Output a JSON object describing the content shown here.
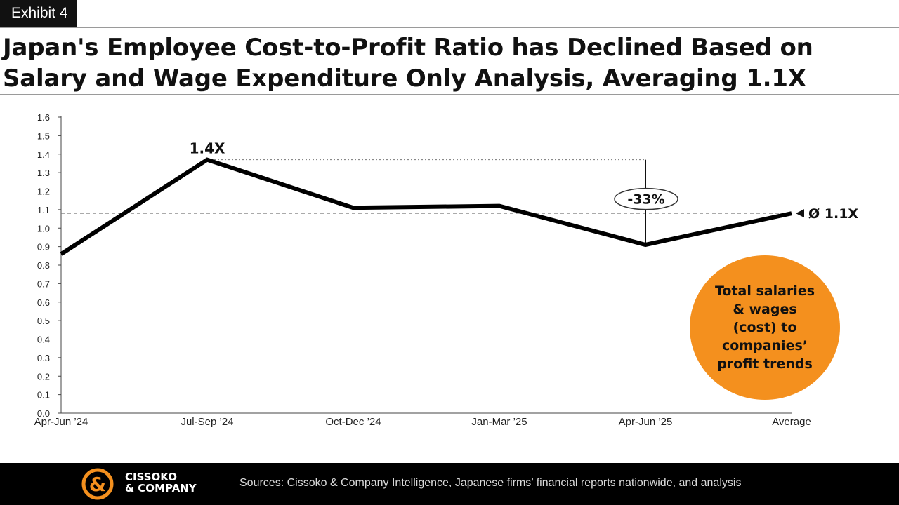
{
  "exhibit_label": "Exhibit 4",
  "title": "Japan's Employee Cost-to-Profit Ratio has Declined Based on Salary and Wage Expenditure Only Analysis, Averaging 1.1X",
  "chart_data": {
    "type": "line",
    "categories": [
      "Apr-Jun ’24",
      "Jul-Sep ’24",
      "Oct-Dec ’24",
      "Jan-Mar ’25",
      "Apr-Jun ’25",
      "Average"
    ],
    "values": [
      0.86,
      1.37,
      1.11,
      1.12,
      0.91,
      1.08
    ],
    "ylim": [
      0.0,
      1.6
    ],
    "yticks": [
      "0.0",
      "0.1",
      "0.2",
      "0.3",
      "0.4",
      "0.5",
      "0.6",
      "0.7",
      "0.8",
      "0.9",
      "1.0",
      "1.1",
      "1.2",
      "1.3",
      "1.4",
      "1.5",
      "1.6"
    ],
    "grid": false,
    "average_value": 1.08,
    "peak_label": "1.4X",
    "average_label": "Ø 1.1X",
    "change_label": "-33%",
    "colors": {
      "line": "#000000",
      "reference": "#777777"
    }
  },
  "badge": {
    "text": "Total salaries & wages (cost) to companies’ profit trends",
    "color": "#f4901e"
  },
  "footer": {
    "brand_line1": "CISSOKO",
    "brand_line2": "& COMPANY",
    "sources": "Sources: Cissoko & Company Intelligence, Japanese firms’ financial reports nationwide, and analysis",
    "accent": "#f4901e"
  }
}
